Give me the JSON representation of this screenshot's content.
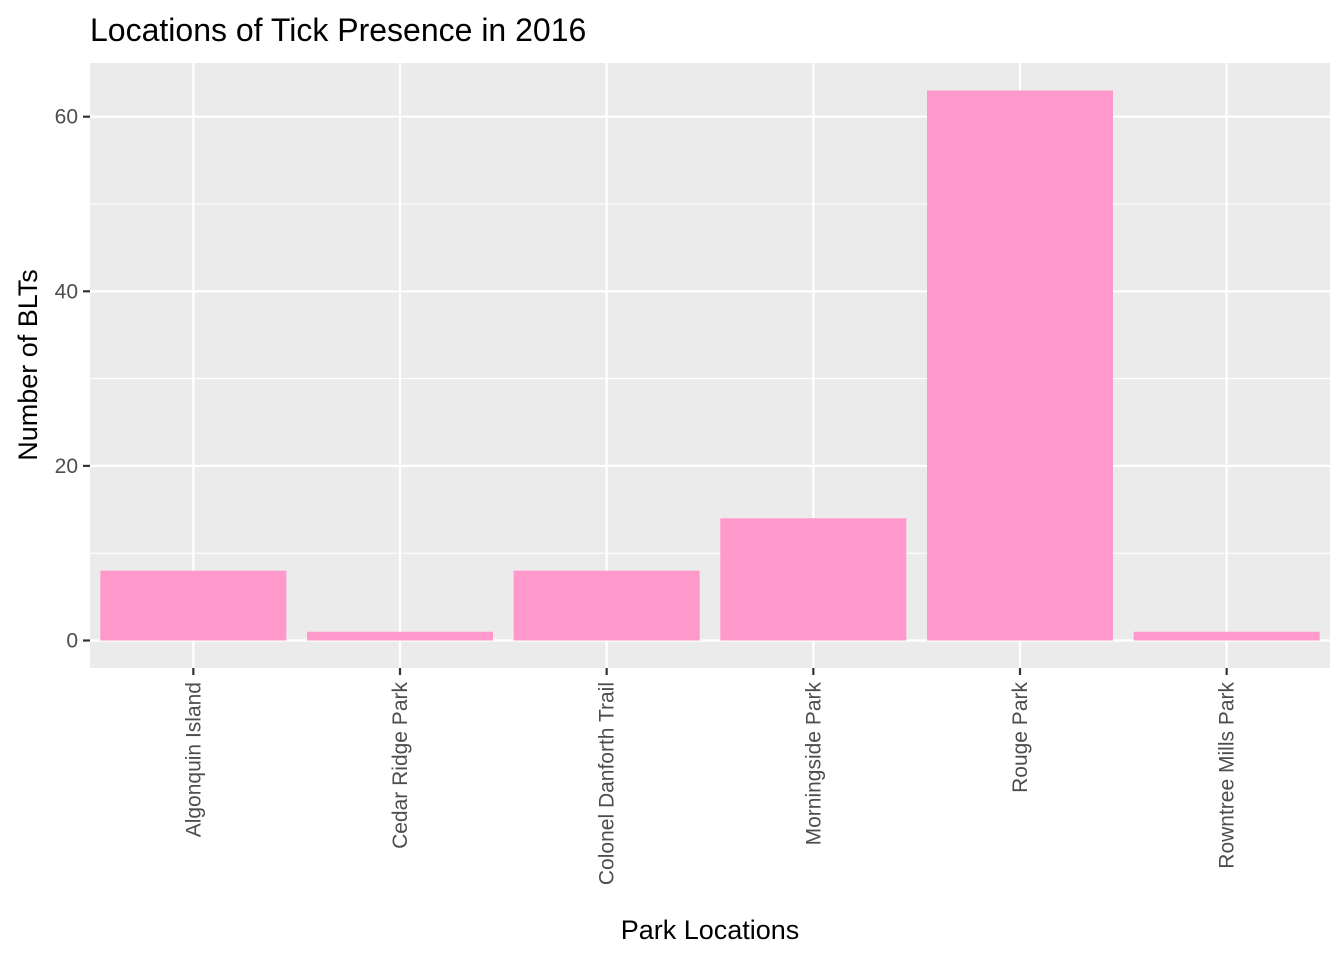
{
  "chart_data": {
    "type": "bar",
    "title": "Locations of Tick Presence in 2016",
    "xlabel": "Park Locations",
    "ylabel": "Number of BLTs",
    "categories": [
      "Algonquin Island",
      "Cedar Ridge Park",
      "Colonel Danforth Trail",
      "Morningside Park",
      "Rouge Park",
      "Rowntree Mills Park"
    ],
    "values": [
      8,
      1,
      8,
      14,
      63,
      1
    ],
    "ylim": [
      -3.15,
      66.15
    ],
    "yticks": [
      0,
      20,
      40,
      60
    ],
    "grid": true,
    "legend": "none"
  },
  "colors": {
    "bar": "#ff99cc",
    "panel": "#ebebeb",
    "grid": "#ffffff"
  }
}
